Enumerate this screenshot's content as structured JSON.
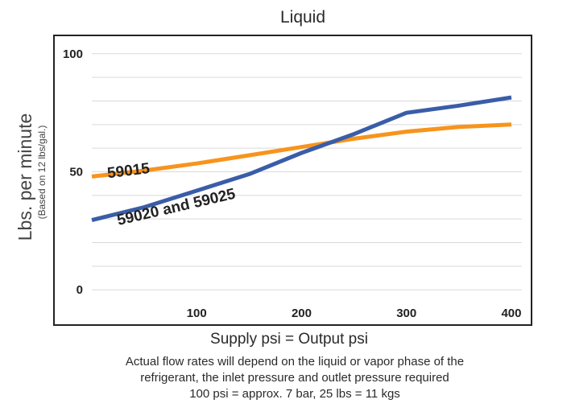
{
  "chart_data": {
    "type": "line",
    "title": "Liquid",
    "xlabel": "Supply psi = Output psi",
    "ylabel": "Lbs. per minute",
    "ylabel_sub": "(Based on 12 lbs/gal.)",
    "xlim": [
      0,
      410
    ],
    "ylim": [
      -3,
      103
    ],
    "x_ticks": [
      {
        "value": 100,
        "label": "100"
      },
      {
        "value": 200,
        "label": "200"
      },
      {
        "value": 300,
        "label": "300"
      },
      {
        "value": 400,
        "label": "400"
      }
    ],
    "y_ticks": [
      {
        "value": 0,
        "label": "0"
      },
      {
        "value": 50,
        "label": "50"
      },
      {
        "value": 100,
        "label": "100"
      }
    ],
    "gridlines_y": [
      0,
      10,
      20,
      30,
      40,
      50,
      60,
      70,
      80,
      90,
      100
    ],
    "grid": true,
    "legend": "none",
    "series": [
      {
        "name": "59015",
        "color": "#f7941d",
        "x": [
          0,
          50,
          100,
          150,
          200,
          250,
          300,
          350,
          400
        ],
        "y": [
          48,
          50.5,
          53.5,
          57,
          60.5,
          64,
          67,
          69,
          70
        ],
        "label_at": [
          0,
          48
        ],
        "label_angle": -7
      },
      {
        "name": "59020 and 59025",
        "color": "#3a5da8",
        "x": [
          0,
          50,
          100,
          150,
          200,
          250,
          300,
          350,
          400
        ],
        "y": [
          29.5,
          35,
          42,
          49,
          58,
          66,
          75,
          78,
          81.5
        ],
        "label_at": [
          10,
          28
        ],
        "label_angle": -13
      }
    ],
    "notes": [
      "Actual flow rates will depend on the liquid or vapor phase of the",
      "refrigerant, the inlet pressure and outlet pressure required",
      "100 psi = approx. 7 bar,  25 lbs = 11 kgs"
    ]
  }
}
